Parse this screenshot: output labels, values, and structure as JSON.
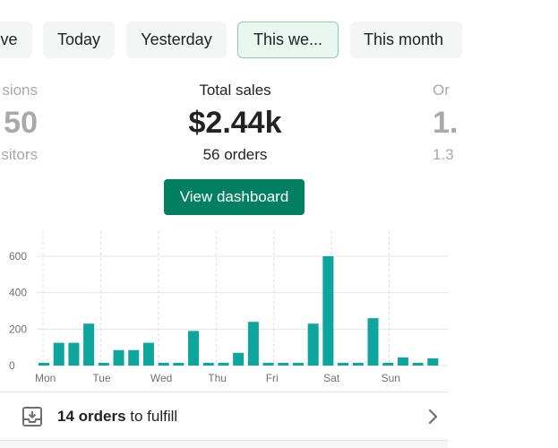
{
  "tabs": [
    {
      "label": "ive",
      "active": false
    },
    {
      "label": "Today",
      "active": false
    },
    {
      "label": "Yesterday",
      "active": false
    },
    {
      "label": "This we...",
      "active": true
    },
    {
      "label": "This month",
      "active": false
    }
  ],
  "stats": {
    "left": {
      "label": "sions",
      "value": "50",
      "sub": "sitors"
    },
    "center": {
      "label": "Total sales",
      "value": "$2.44k",
      "sub": "56 orders"
    },
    "right": {
      "label": "Or",
      "value": "1.",
      "sub": "1.3"
    }
  },
  "dashboard_button": "View dashboard",
  "chart_data": {
    "type": "bar",
    "ylim": [
      0,
      700
    ],
    "yticks": [
      0,
      200,
      400,
      600
    ],
    "xlabels": [
      "Mon",
      "Tue",
      "Wed",
      "Thu",
      "Fri",
      "Sat",
      "Sun"
    ],
    "values": [
      15,
      125,
      125,
      230,
      15,
      85,
      85,
      125,
      15,
      15,
      190,
      15,
      15,
      70,
      240,
      15,
      15,
      15,
      230,
      600,
      15,
      15,
      260,
      15,
      45,
      15,
      40
    ],
    "bar_color": "#0ea59c",
    "grid": true
  },
  "fulfill": {
    "count": "14 orders",
    "rest": " to fulfill"
  },
  "colors": {
    "accent": "#008060",
    "bar": "#0ea59c"
  }
}
